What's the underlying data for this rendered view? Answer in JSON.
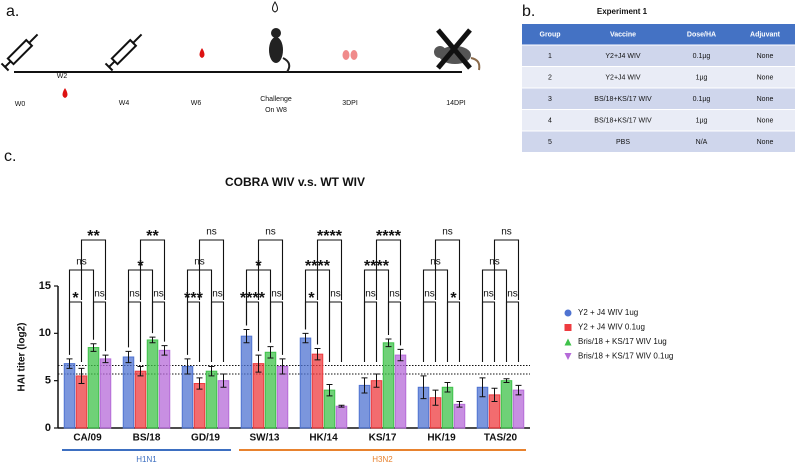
{
  "panel_a": {
    "label": "a.",
    "timepoints": [
      "W0",
      "W2",
      "W4",
      "W6",
      "Challenge",
      "On W8",
      "3DPI",
      "14DPI"
    ]
  },
  "panel_b": {
    "label": "b.",
    "title": "Experiment 1",
    "header": [
      "Group",
      "Vaccine",
      "Dose/HA",
      "Adjuvant"
    ],
    "rows": [
      [
        "1",
        "Y2+J4 WIV",
        "0.1µg",
        "None"
      ],
      [
        "2",
        "Y2+J4 WIV",
        "1µg",
        "None"
      ],
      [
        "3",
        "BS/18+KS/17 WIV",
        "0.1µg",
        "None"
      ],
      [
        "4",
        "BS/18+KS/17 WIV",
        "1µg",
        "None"
      ],
      [
        "5",
        "PBS",
        "N/A",
        "None"
      ]
    ]
  },
  "chart_data": {
    "type": "bar",
    "label": "c.",
    "title": "COBRA WIV v.s. WT WIV",
    "y_label": "HAI titer (log2)",
    "categories": [
      "CA/09",
      "BS/18",
      "GD/19",
      "SW/13",
      "HK/14",
      "KS/17",
      "HK/19",
      "TAS/20"
    ],
    "series": [
      {
        "name": "Y2 + J4 WIV 1ug",
        "color": "#4f73d1",
        "marker": "circle",
        "values": [
          6.8,
          7.5,
          6.5,
          9.7,
          9.5,
          4.5,
          4.3,
          4.3
        ],
        "errors": [
          0.5,
          0.6,
          0.8,
          0.7,
          0.5,
          0.8,
          1.2,
          1.0
        ]
      },
      {
        "name": "Y2 + J4 WIV 0.1ug",
        "color": "#ee3b3f",
        "marker": "square",
        "values": [
          5.5,
          6.0,
          4.7,
          6.8,
          7.8,
          5.0,
          3.2,
          3.5
        ],
        "errors": [
          0.8,
          0.5,
          0.6,
          0.9,
          0.6,
          0.7,
          0.8,
          0.7
        ]
      },
      {
        "name": "Bris/18 + KS/17 WIV 1ug",
        "color": "#3fc24a",
        "marker": "triangle",
        "values": [
          8.5,
          9.3,
          6.0,
          8.0,
          4.0,
          9.0,
          4.3,
          5.0
        ],
        "errors": [
          0.4,
          0.3,
          0.5,
          0.6,
          0.6,
          0.4,
          0.5,
          0.2
        ]
      },
      {
        "name": "Bris/18 + KS/17 WIV 0.1ug",
        "color": "#b56ad8",
        "marker": "triangle-down",
        "values": [
          7.3,
          8.2,
          5.0,
          6.5,
          2.3,
          7.7,
          2.5,
          4.0
        ],
        "errors": [
          0.4,
          0.5,
          0.7,
          0.8,
          0.1,
          0.6,
          0.3,
          0.5
        ]
      }
    ],
    "significance": [
      [
        "*",
        "ns",
        "ns",
        "**"
      ],
      [
        "ns",
        "ns",
        "*",
        "**"
      ],
      [
        "***",
        "ns",
        "ns",
        "ns"
      ],
      [
        "****",
        "ns",
        "*",
        "ns"
      ],
      [
        "*",
        "ns",
        "****",
        "****"
      ],
      [
        "ns",
        "ns",
        "****",
        "****"
      ],
      [
        "ns",
        "*",
        "ns",
        "ns"
      ],
      [
        "ns",
        "ns",
        "ns",
        "ns"
      ]
    ],
    "reference_lines": [
      6.6,
      5.7
    ],
    "groups": [
      {
        "label": "H1N1",
        "color": "#3d6fc1"
      },
      {
        "label": "H3N2",
        "color": "#e8822e"
      }
    ],
    "ylim": [
      0,
      15
    ],
    "yticks": [
      0,
      5,
      10,
      15
    ]
  }
}
